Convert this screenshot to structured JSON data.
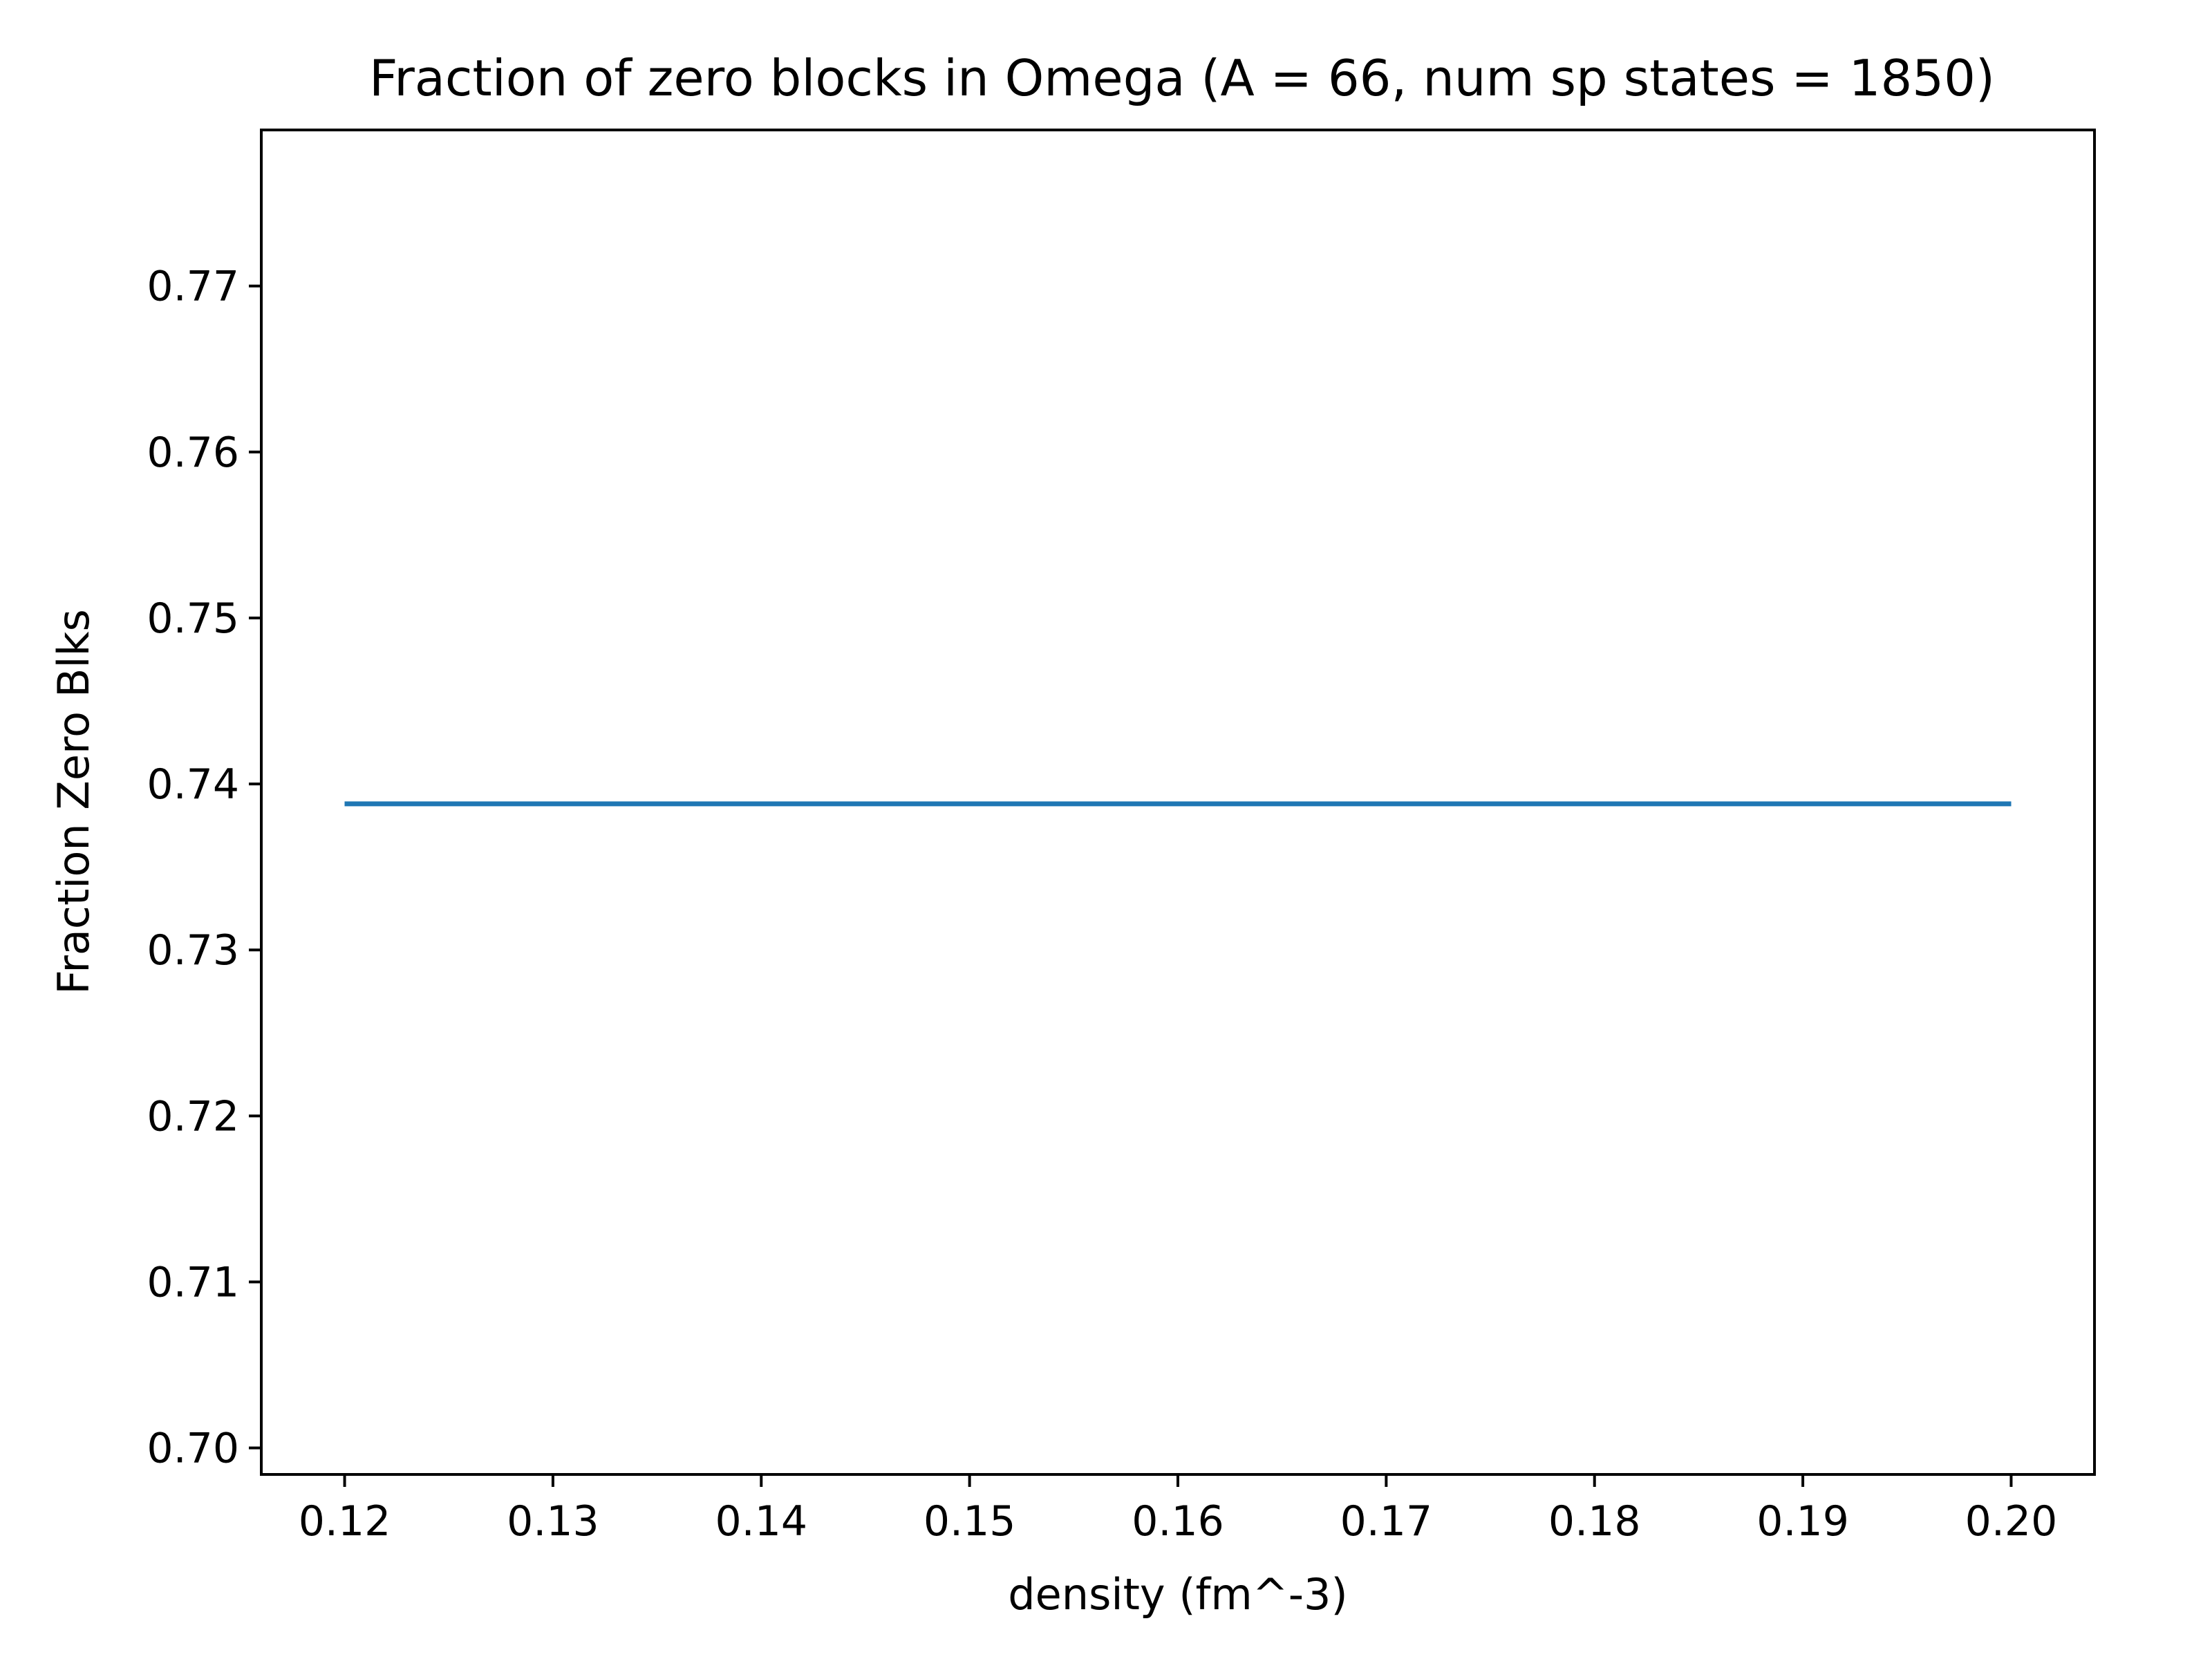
{
  "chart_data": {
    "type": "line",
    "title": "Fraction of zero blocks in Omega (A = 66, num sp states = 1850)",
    "xlabel": "density (fm^-3)",
    "ylabel": "Fraction Zero Blks",
    "xlim": [
      0.116,
      0.204
    ],
    "ylim": [
      0.6984,
      0.7794
    ],
    "xticks": [
      0.12,
      0.13,
      0.14,
      0.15,
      0.16,
      0.17,
      0.18,
      0.19,
      0.2
    ],
    "xtick_labels": [
      "0.12",
      "0.13",
      "0.14",
      "0.15",
      "0.16",
      "0.17",
      "0.18",
      "0.19",
      "0.20"
    ],
    "yticks": [
      0.7,
      0.71,
      0.72,
      0.73,
      0.74,
      0.75,
      0.76,
      0.77
    ],
    "ytick_labels": [
      "0.70",
      "0.71",
      "0.72",
      "0.73",
      "0.74",
      "0.75",
      "0.76",
      "0.77"
    ],
    "grid": false,
    "legend": "none",
    "series": [
      {
        "color": "#1f77b4",
        "x": [
          0.12,
          0.13,
          0.14,
          0.15,
          0.16,
          0.17,
          0.18,
          0.19,
          0.2
        ],
        "y": [
          0.7388,
          0.7388,
          0.7388,
          0.7388,
          0.7388,
          0.7388,
          0.7388,
          0.7388,
          0.7388
        ]
      }
    ]
  }
}
